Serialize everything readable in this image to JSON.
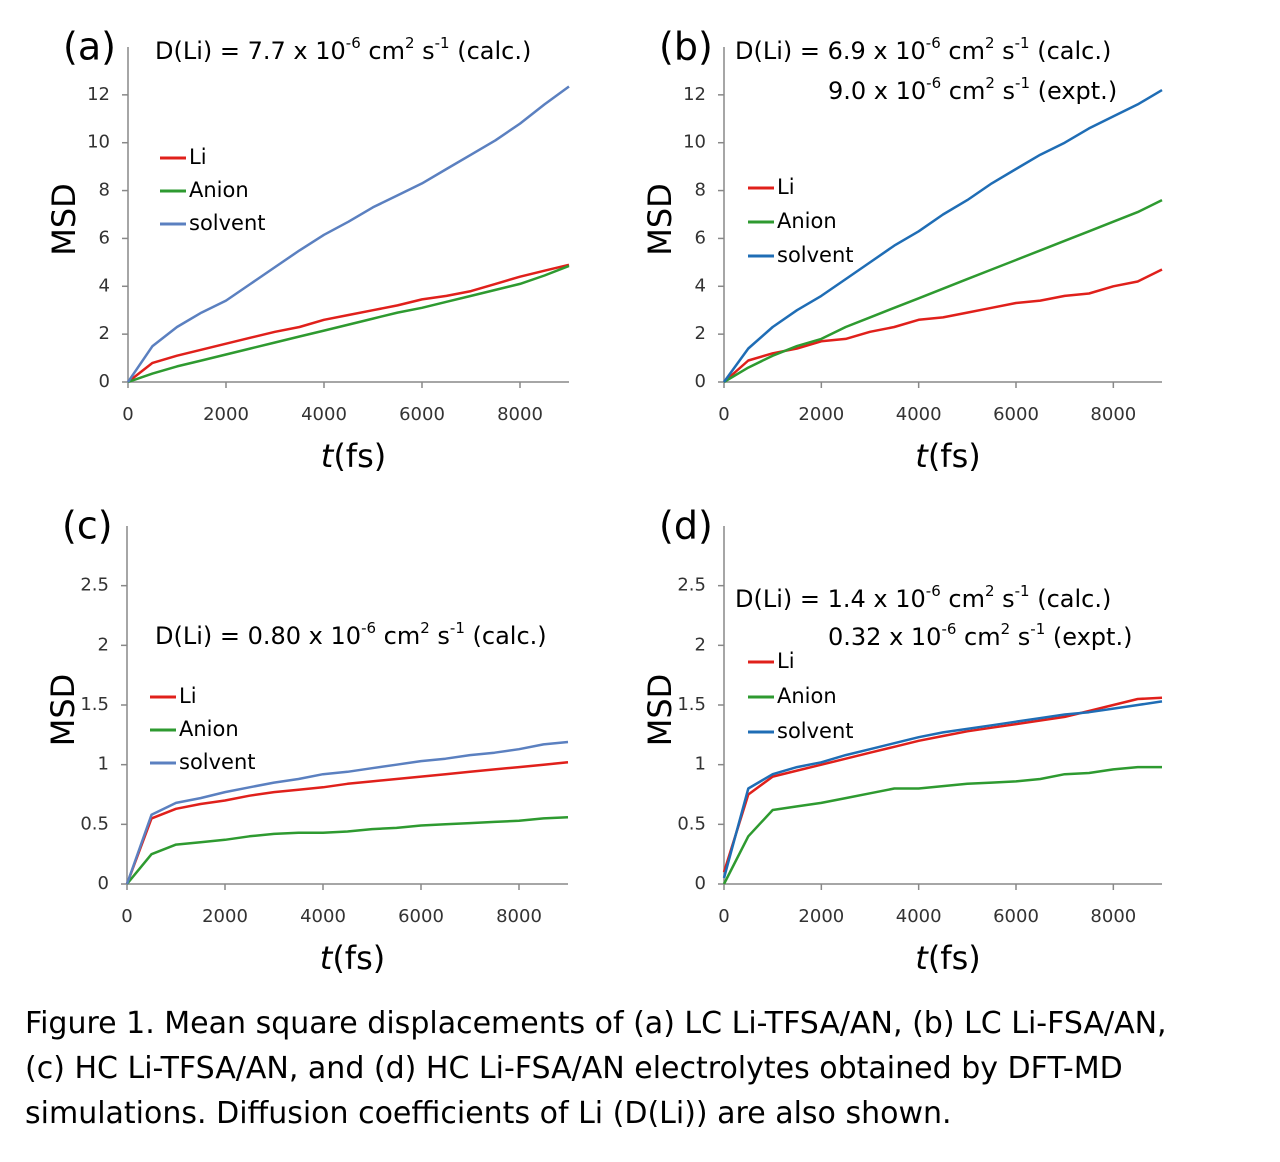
{
  "chart_data": [
    {
      "type": "line",
      "panel_label": "(a)",
      "annotations": [
        [
          "D(Li) = 7.7 x 10",
          "-6",
          " cm",
          "2",
          " s",
          "-1",
          " (calc.)"
        ]
      ],
      "x_label": [
        "t",
        "(fs)"
      ],
      "y_label": "MSD",
      "x": [
        0,
        500,
        1000,
        1500,
        2000,
        2500,
        3000,
        3500,
        4000,
        4500,
        5000,
        5500,
        6000,
        6500,
        7000,
        7500,
        8000,
        8500,
        9000
      ],
      "xlim": [
        0,
        9000
      ],
      "xticks": [
        0,
        2000,
        4000,
        6000,
        8000
      ],
      "ylim": [
        0,
        14
      ],
      "yticks": [
        0,
        2,
        4,
        6,
        8,
        10,
        12
      ],
      "series": [
        {
          "name": "Li",
          "color": "#e0201b",
          "values": [
            0,
            0.8,
            1.1,
            1.35,
            1.6,
            1.85,
            2.1,
            2.3,
            2.6,
            2.8,
            3.0,
            3.2,
            3.45,
            3.6,
            3.8,
            4.1,
            4.4,
            4.65,
            4.9
          ]
        },
        {
          "name": "Anion",
          "color": "#2e9a30",
          "values": [
            0,
            0.35,
            0.65,
            0.9,
            1.15,
            1.4,
            1.65,
            1.9,
            2.15,
            2.4,
            2.65,
            2.9,
            3.1,
            3.35,
            3.6,
            3.85,
            4.1,
            4.45,
            4.85
          ]
        },
        {
          "name": "solvent",
          "color": "#5b80c0",
          "values": [
            0,
            1.5,
            2.3,
            2.9,
            3.4,
            4.1,
            4.8,
            5.5,
            6.15,
            6.7,
            7.3,
            7.8,
            8.3,
            8.9,
            9.5,
            10.1,
            10.8,
            11.6,
            12.35
          ]
        }
      ]
    },
    {
      "type": "line",
      "panel_label": "(b)",
      "annotations": [
        [
          "D(Li) = 6.9 x 10",
          "-6",
          " cm",
          "2",
          " s",
          "-1",
          "  (calc.)"
        ],
        [
          "9.0 x 10",
          "-6",
          " cm",
          "2",
          " s",
          "-1",
          "  (expt.)"
        ]
      ],
      "x_label": [
        "t",
        "(fs)"
      ],
      "y_label": "MSD",
      "x": [
        0,
        500,
        1000,
        1500,
        2000,
        2500,
        3000,
        3500,
        4000,
        4500,
        5000,
        5500,
        6000,
        6500,
        7000,
        7500,
        8000,
        8500,
        9000
      ],
      "xlim": [
        0,
        9000
      ],
      "xticks": [
        0,
        2000,
        4000,
        6000,
        8000
      ],
      "ylim": [
        0,
        14
      ],
      "yticks": [
        0,
        2,
        4,
        6,
        8,
        10,
        12
      ],
      "series": [
        {
          "name": "Li",
          "color": "#e0201b",
          "values": [
            0,
            0.9,
            1.2,
            1.4,
            1.7,
            1.8,
            2.1,
            2.3,
            2.6,
            2.7,
            2.9,
            3.1,
            3.3,
            3.4,
            3.6,
            3.7,
            4.0,
            4.2,
            4.7
          ]
        },
        {
          "name": "Anion",
          "color": "#2e9a30",
          "values": [
            0,
            0.6,
            1.1,
            1.5,
            1.8,
            2.3,
            2.7,
            3.1,
            3.5,
            3.9,
            4.3,
            4.7,
            5.1,
            5.5,
            5.9,
            6.3,
            6.7,
            7.1,
            7.6
          ]
        },
        {
          "name": "solvent",
          "color": "#1f6db5",
          "values": [
            0,
            1.4,
            2.3,
            3.0,
            3.6,
            4.3,
            5.0,
            5.7,
            6.3,
            7.0,
            7.6,
            8.3,
            8.9,
            9.5,
            10.0,
            10.6,
            11.1,
            11.6,
            12.2
          ]
        }
      ]
    },
    {
      "type": "line",
      "panel_label": "(c)",
      "annotations": [
        [
          "D(Li) = 0.80 x 10",
          "-6",
          " cm",
          "2",
          " s",
          "-1",
          " (calc.)"
        ]
      ],
      "x_label": [
        "t",
        "(fs)"
      ],
      "y_label": "MSD",
      "x": [
        0,
        500,
        1000,
        1500,
        2000,
        2500,
        3000,
        3500,
        4000,
        4500,
        5000,
        5500,
        6000,
        6500,
        7000,
        7500,
        8000,
        8500,
        9000
      ],
      "xlim": [
        0,
        9000
      ],
      "xticks": [
        0,
        2000,
        4000,
        6000,
        8000
      ],
      "ylim": [
        0,
        3
      ],
      "yticks": [
        0,
        0.5,
        1,
        1.5,
        2,
        2.5
      ],
      "series": [
        {
          "name": "Li",
          "color": "#e0201b",
          "values": [
            0,
            0.55,
            0.63,
            0.67,
            0.7,
            0.74,
            0.77,
            0.79,
            0.81,
            0.84,
            0.86,
            0.88,
            0.9,
            0.92,
            0.94,
            0.96,
            0.98,
            1.0,
            1.02
          ]
        },
        {
          "name": "Anion",
          "color": "#2e9a30",
          "values": [
            0,
            0.25,
            0.33,
            0.35,
            0.37,
            0.4,
            0.42,
            0.43,
            0.43,
            0.44,
            0.46,
            0.47,
            0.49,
            0.5,
            0.51,
            0.52,
            0.53,
            0.55,
            0.56
          ]
        },
        {
          "name": "solvent",
          "color": "#5b80c0",
          "values": [
            0,
            0.58,
            0.68,
            0.72,
            0.77,
            0.81,
            0.85,
            0.88,
            0.92,
            0.94,
            0.97,
            1.0,
            1.03,
            1.05,
            1.08,
            1.1,
            1.13,
            1.17,
            1.19
          ]
        }
      ]
    },
    {
      "type": "line",
      "panel_label": "(d)",
      "annotations": [
        [
          "D(Li) = 1.4 x 10",
          "-6",
          " cm",
          "2",
          " s",
          "-1",
          "  (calc.)"
        ],
        [
          "0.32 x 10",
          "-6",
          " cm",
          "2",
          " s",
          "-1",
          "  (expt.)"
        ]
      ],
      "x_label": [
        "t",
        "(fs)"
      ],
      "y_label": "MSD",
      "x": [
        0,
        500,
        1000,
        1500,
        2000,
        2500,
        3000,
        3500,
        4000,
        4500,
        5000,
        5500,
        6000,
        6500,
        7000,
        7500,
        8000,
        8500,
        9000
      ],
      "xlim": [
        0,
        9000
      ],
      "xticks": [
        0,
        2000,
        4000,
        6000,
        8000
      ],
      "ylim": [
        0,
        3
      ],
      "yticks": [
        0,
        0.5,
        1,
        1.5,
        2,
        2.5
      ],
      "series": [
        {
          "name": "Li",
          "color": "#e0201b",
          "values": [
            0.1,
            0.75,
            0.9,
            0.95,
            1.0,
            1.05,
            1.1,
            1.15,
            1.2,
            1.24,
            1.28,
            1.31,
            1.34,
            1.37,
            1.4,
            1.45,
            1.5,
            1.55,
            1.56
          ]
        },
        {
          "name": "Anion",
          "color": "#2e9a30",
          "values": [
            0,
            0.4,
            0.62,
            0.65,
            0.68,
            0.72,
            0.76,
            0.8,
            0.8,
            0.82,
            0.84,
            0.85,
            0.86,
            0.88,
            0.92,
            0.93,
            0.96,
            0.98,
            0.98
          ]
        },
        {
          "name": "solvent",
          "color": "#1f6db5",
          "values": [
            0.05,
            0.8,
            0.92,
            0.98,
            1.02,
            1.08,
            1.13,
            1.18,
            1.23,
            1.27,
            1.3,
            1.33,
            1.36,
            1.39,
            1.42,
            1.44,
            1.47,
            1.5,
            1.53
          ]
        }
      ]
    }
  ],
  "caption": [
    "Figure 1. Mean square displacements of (a) LC Li-TFSA/AN, (b) LC Li-FSA/AN,",
    "(c) HC Li-TFSA/AN, and (d) HC Li-FSA/AN electrolytes obtained by DFT-MD",
    "simulations. Diffusion coefficients of Li (D(Li)) are also shown."
  ]
}
